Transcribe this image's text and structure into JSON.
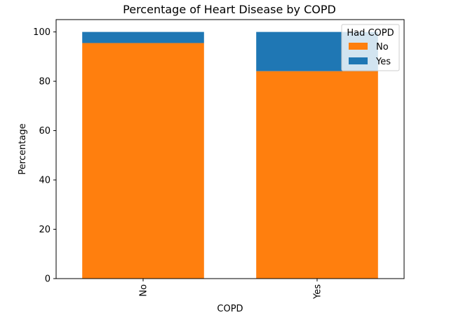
{
  "chart_data": {
    "type": "bar",
    "stacked": true,
    "title": "Percentage of Heart Disease by COPD",
    "xlabel": "COPD",
    "ylabel": "Percentage",
    "categories": [
      "No",
      "Yes"
    ],
    "series": [
      {
        "name": "No",
        "values": [
          95.5,
          84.1
        ],
        "color": "#ff7f0e"
      },
      {
        "name": "Yes",
        "values": [
          4.5,
          15.9
        ],
        "color": "#1f77b4"
      }
    ],
    "ylim": [
      0,
      105
    ],
    "yticks": [
      0,
      20,
      40,
      60,
      80,
      100
    ],
    "grid": false,
    "legend": {
      "title": "Had COPD",
      "placement": "top-right"
    }
  }
}
